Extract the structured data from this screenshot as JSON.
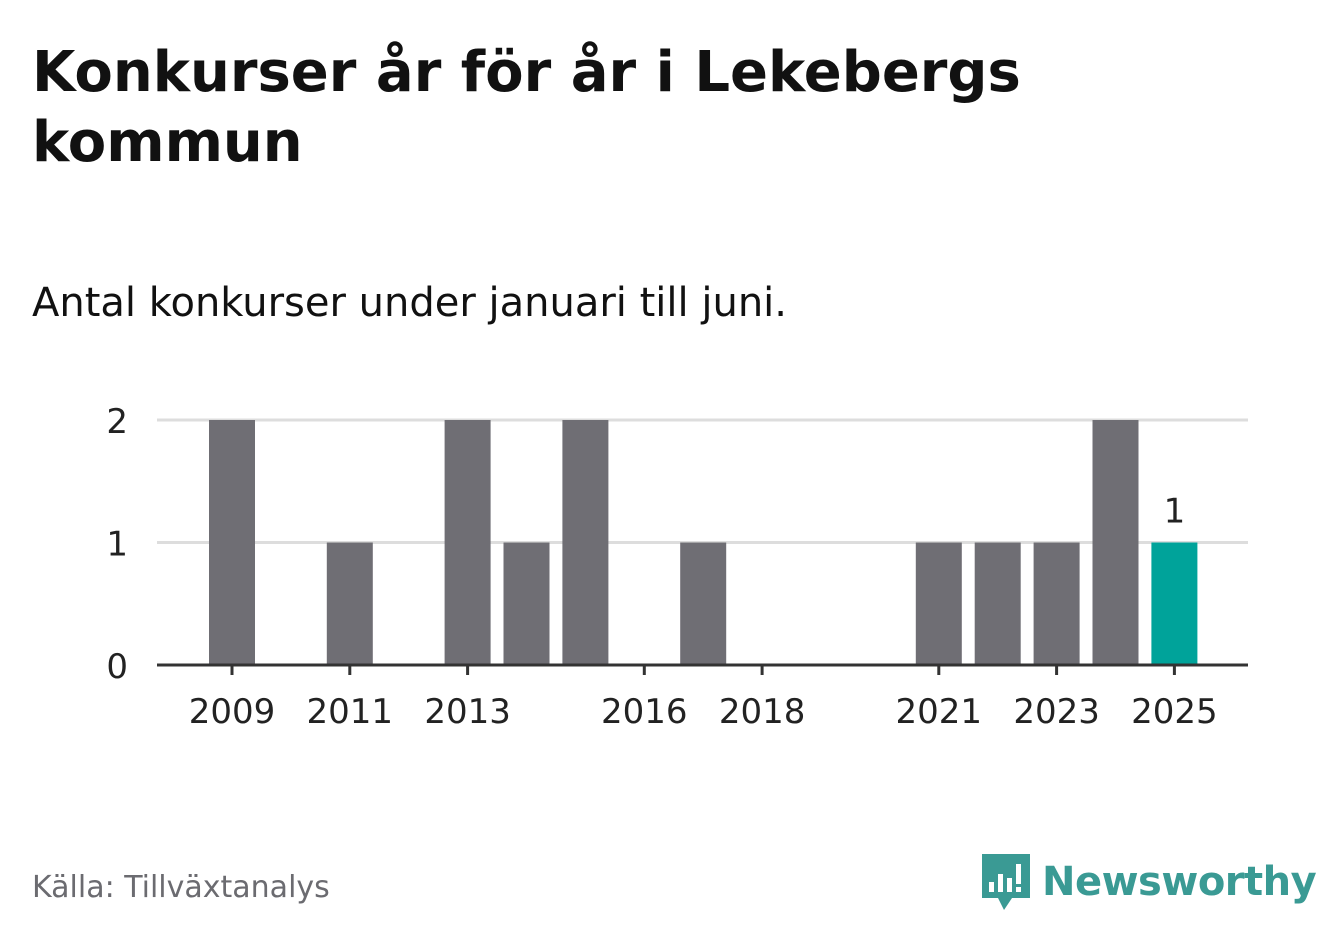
{
  "title": "Konkurser år för år i Lekebergs kommun",
  "subtitle": "Antal konkurser under januari till juni.",
  "source": "Källa: Tillväxtanalys",
  "brand": {
    "name": "Newsworthy",
    "icon": "newsworthy-logo-icon",
    "color": "#3a9a94"
  },
  "colors": {
    "bar": "#6f6e74",
    "highlight": "#00a39a",
    "grid": "#dddddd",
    "axis": "#333333"
  },
  "chart_data": {
    "type": "bar",
    "categories": [
      "2009",
      "2010",
      "2011",
      "2012",
      "2013",
      "2014",
      "2015",
      "2016",
      "2017",
      "2018",
      "2019",
      "2020",
      "2021",
      "2022",
      "2023",
      "2024",
      "2025"
    ],
    "values": [
      2,
      0,
      1,
      0,
      2,
      1,
      2,
      0,
      1,
      0,
      0,
      0,
      1,
      1,
      1,
      2,
      1
    ],
    "x_tick_labels": [
      "2009",
      "2011",
      "2013",
      "2016",
      "2018",
      "2021",
      "2023",
      "2025"
    ],
    "y_ticks": [
      0,
      1,
      2
    ],
    "ylim": [
      0,
      2
    ],
    "highlight_category": "2025",
    "data_labels": [
      {
        "category": "2025",
        "text": "1"
      }
    ],
    "grid": true,
    "xlabel": "",
    "ylabel": ""
  }
}
